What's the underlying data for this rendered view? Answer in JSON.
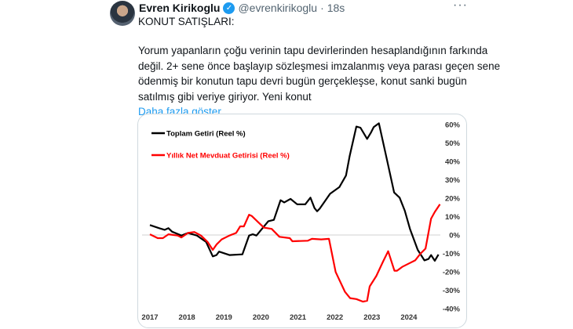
{
  "tweet": {
    "author_name": "Evren Kirikoglu",
    "handle": "@evrenkirikoglu",
    "separator": "·",
    "time": "18s",
    "more_icon": "ellipsis-icon",
    "verified_icon": "verified-badge-icon",
    "heading": "KONUT SATIŞLARI:",
    "body_lines": [
      "Yorum yapanların çoğu verinin tapu devirlerinden hesaplandığının farkında",
      "değil. 2+ sene önce başlayıp sözleşmesi imzalanmış veya parası geçen sene",
      "ödenmiş bir konutun tapu devri bugün gerçekleşse, konut sanki bugün",
      "satılmış gibi veriye giriyor. Yeni konut"
    ],
    "show_more": "Daha fazla göster"
  },
  "chart_data": {
    "type": "line",
    "title": "",
    "xlabel": "",
    "ylabel": "",
    "x_ticks": [
      "2017",
      "2018",
      "2019",
      "2020",
      "2021",
      "2022",
      "2023",
      "2024"
    ],
    "y_ticks": [
      "60%",
      "50%",
      "40%",
      "30%",
      "20%",
      "10%",
      "0%",
      "-10%",
      "-20%",
      "-30%",
      "-40%"
    ],
    "ylim": [
      -40,
      60
    ],
    "xlim": [
      2017,
      2025
    ],
    "y_axis_side": "right",
    "grid": false,
    "zero_line": true,
    "legend_placement": "top-left",
    "series": [
      {
        "name": "Toplam Getiri (Reel %)",
        "color": "#000000",
        "points": [
          [
            2017.0,
            5.4
          ],
          [
            2017.25,
            3.7
          ],
          [
            2017.4,
            2.8
          ],
          [
            2017.5,
            3.7
          ],
          [
            2017.6,
            1.8
          ],
          [
            2017.85,
            -0.3
          ],
          [
            2018.03,
            1.1
          ],
          [
            2018.27,
            -0.3
          ],
          [
            2018.52,
            -3.8
          ],
          [
            2018.7,
            -11.6
          ],
          [
            2018.8,
            -10.9
          ],
          [
            2018.87,
            -9
          ],
          [
            2019.15,
            -10.9
          ],
          [
            2019.5,
            -10.5
          ],
          [
            2019.68,
            -0.3
          ],
          [
            2019.78,
            0.4
          ],
          [
            2019.88,
            -0.3
          ],
          [
            2020.2,
            7.5
          ],
          [
            2020.35,
            8.2
          ],
          [
            2020.53,
            18.9
          ],
          [
            2020.63,
            17.7
          ],
          [
            2020.8,
            19.6
          ],
          [
            2020.98,
            16.7
          ],
          [
            2021.2,
            16.7
          ],
          [
            2021.34,
            20.3
          ],
          [
            2021.45,
            14.6
          ],
          [
            2021.52,
            12.9
          ],
          [
            2021.59,
            14.3
          ],
          [
            2021.87,
            22.4
          ],
          [
            2022.12,
            26
          ],
          [
            2022.3,
            32.3
          ],
          [
            2022.4,
            43
          ],
          [
            2022.58,
            58.9
          ],
          [
            2022.69,
            58.3
          ],
          [
            2022.87,
            52.2
          ],
          [
            2022.97,
            55.5
          ],
          [
            2023.05,
            58.6
          ],
          [
            2023.19,
            60.7
          ],
          [
            2023.4,
            41.6
          ],
          [
            2023.6,
            23.1
          ],
          [
            2023.75,
            20.3
          ],
          [
            2023.89,
            13.2
          ],
          [
            2024.03,
            3.3
          ],
          [
            2024.24,
            -8.1
          ],
          [
            2024.42,
            -13.8
          ],
          [
            2024.53,
            -13
          ],
          [
            2024.6,
            -10.9
          ],
          [
            2024.7,
            -14
          ],
          [
            2024.8,
            -10.6
          ]
        ]
      },
      {
        "name": "Yıllık Net Mevduat Getirisi (Reel %)",
        "color": "#ff0000",
        "points": [
          [
            2017.0,
            0.4
          ],
          [
            2017.21,
            -1.7
          ],
          [
            2017.35,
            -1.7
          ],
          [
            2017.5,
            0.4
          ],
          [
            2017.75,
            -0.3
          ],
          [
            2017.85,
            -1.3
          ],
          [
            2018.03,
            1.1
          ],
          [
            2018.2,
            1.6
          ],
          [
            2018.38,
            -0.3
          ],
          [
            2018.56,
            -3.8
          ],
          [
            2018.7,
            -8.1
          ],
          [
            2018.8,
            -5.2
          ],
          [
            2018.94,
            -2.4
          ],
          [
            2019.15,
            -0.3
          ],
          [
            2019.33,
            1.1
          ],
          [
            2019.44,
            4.7
          ],
          [
            2019.54,
            4.7
          ],
          [
            2019.68,
            11
          ],
          [
            2019.75,
            10.4
          ],
          [
            2019.9,
            7.5
          ],
          [
            2020.08,
            4
          ],
          [
            2020.29,
            3.3
          ],
          [
            2020.5,
            -1
          ],
          [
            2020.78,
            -1.7
          ],
          [
            2020.85,
            -3.4
          ],
          [
            2021.27,
            -3.1
          ],
          [
            2021.38,
            -2.1
          ],
          [
            2021.63,
            -2.4
          ],
          [
            2021.84,
            -2.1
          ],
          [
            2022.02,
            -20.1
          ],
          [
            2022.27,
            -30.8
          ],
          [
            2022.41,
            -34.3
          ],
          [
            2022.58,
            -34.8
          ],
          [
            2022.76,
            -36.2
          ],
          [
            2022.87,
            -35.7
          ],
          [
            2022.94,
            -27.9
          ],
          [
            2023.12,
            -22.3
          ],
          [
            2023.3,
            -14.5
          ],
          [
            2023.44,
            -8.8
          ],
          [
            2023.61,
            -19.4
          ],
          [
            2023.68,
            -19.4
          ],
          [
            2023.82,
            -17.3
          ],
          [
            2024.03,
            -15.2
          ],
          [
            2024.17,
            -13.8
          ],
          [
            2024.31,
            -10.2
          ],
          [
            2024.45,
            -7.4
          ],
          [
            2024.6,
            8.9
          ],
          [
            2024.7,
            12.5
          ],
          [
            2024.84,
            16.7
          ]
        ]
      }
    ]
  }
}
